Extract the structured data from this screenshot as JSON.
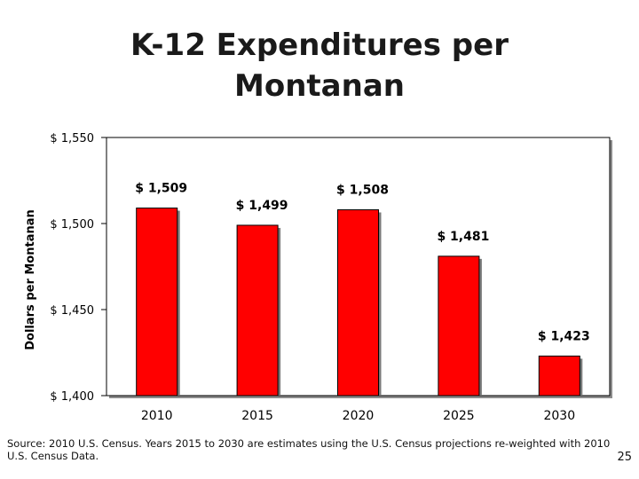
{
  "slide": {
    "title_line1": "K-12 Expenditures per",
    "title_line2": "Montanan",
    "source_note": "Source: 2010 U.S. Census.  Years 2015 to 2030 are estimates using the U.S. Census projections re-weighted with 2010 U.S. Census Data.",
    "page_number": "25"
  },
  "chart_data": {
    "type": "bar",
    "title": "K-12 Expenditures per Montanan",
    "categories": [
      "2010",
      "2015",
      "2020",
      "2025",
      "2030"
    ],
    "values": [
      1509,
      1499,
      1508,
      1481,
      1423
    ],
    "data_labels": [
      "$ 1,509",
      "$ 1,499",
      "$ 1,508",
      "$ 1,481",
      "$ 1,423"
    ],
    "xlabel": "",
    "ylabel": "Dollars per Montanan",
    "ylim": [
      1400,
      1550
    ],
    "yticks": [
      1400,
      1450,
      1500,
      1550
    ],
    "ytick_labels": [
      "$ 1,400",
      "$ 1,450",
      "$ 1,500",
      "$ 1,550"
    ],
    "grid": false,
    "legend": "none",
    "bar_color": "#ff0000",
    "plot_background": "#ffffff"
  }
}
